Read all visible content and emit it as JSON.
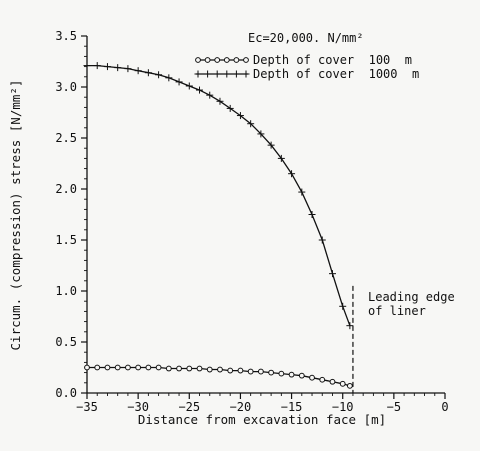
{
  "chart_data": {
    "type": "line",
    "title": "",
    "xlabel": "Distance from excavation face [m]",
    "ylabel": "Circum. (compression) stress [N/mm²]",
    "xlim": [
      -35,
      0
    ],
    "ylim": [
      0,
      3.5
    ],
    "x_ticks": [
      -35,
      -30,
      -25,
      -20,
      -15,
      -10,
      -5,
      0
    ],
    "y_ticks": [
      0.0,
      0.5,
      1.0,
      1.5,
      2.0,
      2.5,
      3.0,
      3.5
    ],
    "x_tick_labels": [
      "−35",
      "−30",
      "−25",
      "−20",
      "−15",
      "−10",
      "−5",
      "0"
    ],
    "y_tick_labels": [
      "0.0",
      "0.5",
      "1.0",
      "1.5",
      "2.0",
      "2.5",
      "3.0",
      "3.5"
    ],
    "legend_header": "Ec=20,000. N/mm²",
    "legend_position": "top-right",
    "grid": false,
    "series": [
      {
        "name": "Depth of cover  100  m",
        "marker": "circle",
        "x": [
          -35,
          -34,
          -33,
          -32,
          -31,
          -30,
          -29,
          -28,
          -27,
          -26,
          -25,
          -24,
          -23,
          -22,
          -21,
          -20,
          -19,
          -18,
          -17,
          -16,
          -15,
          -14,
          -13,
          -12,
          -11,
          -10,
          -9.3
        ],
        "values": [
          0.25,
          0.25,
          0.25,
          0.25,
          0.25,
          0.25,
          0.25,
          0.25,
          0.24,
          0.24,
          0.24,
          0.24,
          0.23,
          0.23,
          0.22,
          0.22,
          0.21,
          0.21,
          0.2,
          0.19,
          0.18,
          0.17,
          0.15,
          0.13,
          0.11,
          0.09,
          0.07
        ]
      },
      {
        "name": "Depth of cover  1000  m",
        "marker": "plus",
        "x": [
          -35,
          -34,
          -33,
          -32,
          -31,
          -30,
          -29,
          -28,
          -27,
          -26,
          -25,
          -24,
          -23,
          -22,
          -21,
          -20,
          -19,
          -18,
          -17,
          -16,
          -15,
          -14,
          -13,
          -12,
          -11,
          -10,
          -9.3
        ],
        "values": [
          3.21,
          3.21,
          3.2,
          3.19,
          3.18,
          3.16,
          3.14,
          3.12,
          3.09,
          3.05,
          3.01,
          2.97,
          2.92,
          2.86,
          2.79,
          2.72,
          2.64,
          2.54,
          2.43,
          2.3,
          2.15,
          1.97,
          1.75,
          1.5,
          1.17,
          0.85,
          0.66
        ]
      }
    ],
    "annotations": {
      "leading_edge_x": -9,
      "leading_edge_text_line1": "Leading edge",
      "leading_edge_text_line2": "of liner"
    }
  }
}
